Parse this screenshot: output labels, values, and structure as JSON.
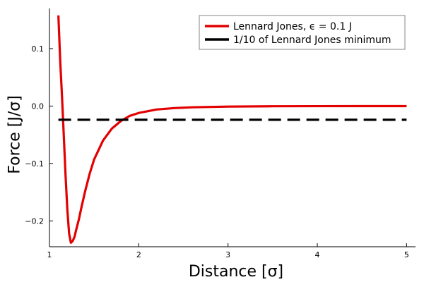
{
  "chart_data": {
    "type": "line",
    "xlabel": "Distance [σ]",
    "ylabel": "Force [J/σ]",
    "xlim": [
      1.0,
      5.1
    ],
    "ylim": [
      -0.245,
      0.17
    ],
    "x_ticks": [
      1,
      2,
      3,
      4,
      5
    ],
    "y_ticks": [
      0.1,
      0.0,
      -0.1,
      -0.2
    ],
    "x_tick_labels": [
      "1",
      "2",
      "3",
      "4",
      "5"
    ],
    "y_tick_labels": [
      "0.1",
      "0.0",
      "−0.1",
      "−0.2"
    ],
    "grid": false,
    "legend_position": "top-right",
    "series": [
      {
        "name": "Lennard Jones, ϵ = 0.1 J",
        "color": "#e30000",
        "style": "solid",
        "x": [
          1.1,
          1.12,
          1.14,
          1.16,
          1.18,
          1.2,
          1.22,
          1.24,
          1.26,
          1.28,
          1.3,
          1.33,
          1.36,
          1.4,
          1.45,
          1.5,
          1.6,
          1.7,
          1.8,
          1.9,
          2.0,
          2.2,
          2.4,
          2.6,
          3.0,
          3.5,
          4.0,
          4.5,
          5.0
        ],
        "y": [
          0.158,
          0.08,
          0.018,
          -0.05,
          -0.12,
          -0.18,
          -0.222,
          -0.238,
          -0.235,
          -0.228,
          -0.215,
          -0.197,
          -0.175,
          -0.148,
          -0.118,
          -0.093,
          -0.06,
          -0.039,
          -0.026,
          -0.017,
          -0.012,
          -0.006,
          -0.0035,
          -0.0021,
          -0.0009,
          -0.0003,
          -0.0001,
          -5e-05,
          -2e-05
        ]
      },
      {
        "name": "1/10 of Lennard Jones minimum",
        "color": "#000000",
        "style": "dashed",
        "x": [
          1.1,
          5.0
        ],
        "y": [
          -0.0238,
          -0.0238
        ]
      }
    ]
  }
}
